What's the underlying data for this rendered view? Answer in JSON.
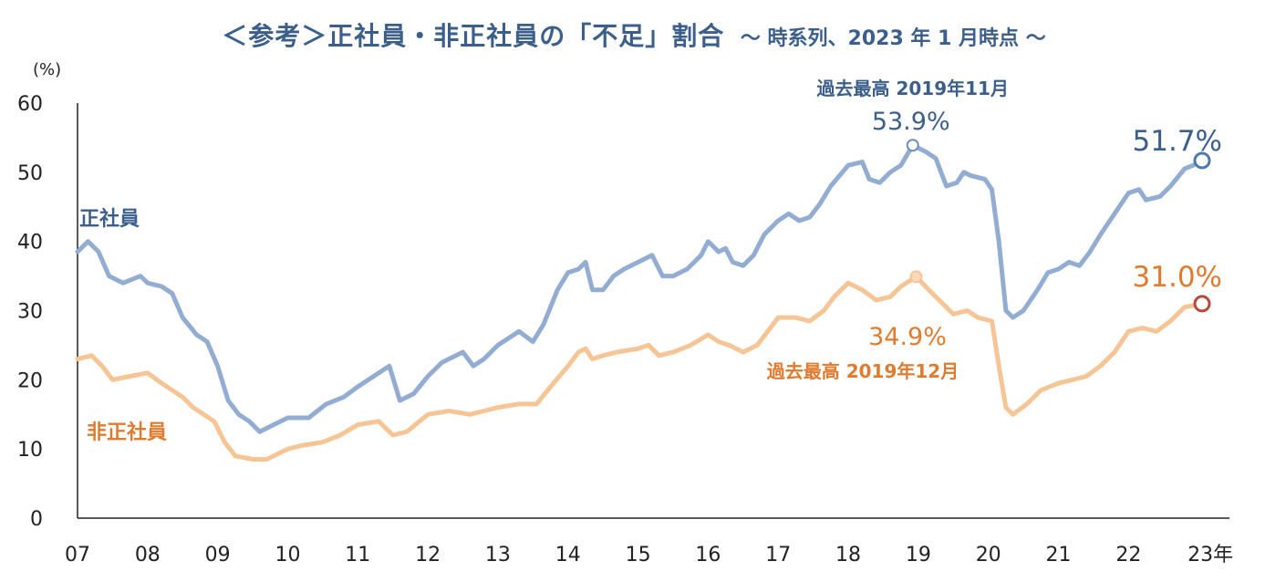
{
  "chart_data": {
    "type": "line",
    "title": "＜参考＞正社員・非正社員の「不足」割合",
    "subtitle": "～ 時系列、2023 年 1 月時点 ～",
    "ylabel": "(%)",
    "xlabel_suffix": "年",
    "ylim": [
      0,
      60
    ],
    "yticks": [
      0,
      10,
      20,
      30,
      40,
      50,
      60
    ],
    "xlim": [
      2007,
      2023.05
    ],
    "xticks": [
      "07",
      "08",
      "09",
      "10",
      "11",
      "12",
      "13",
      "14",
      "15",
      "16",
      "17",
      "18",
      "19",
      "20",
      "21",
      "22",
      "23年"
    ],
    "series": [
      {
        "name": "正社員",
        "color": "#93add2",
        "label_color": "#3b5f8a",
        "points": [
          [
            2007.0,
            38.5
          ],
          [
            2007.15,
            40
          ],
          [
            2007.3,
            38.5
          ],
          [
            2007.45,
            35
          ],
          [
            2007.65,
            34
          ],
          [
            2007.9,
            35
          ],
          [
            2008.0,
            34
          ],
          [
            2008.2,
            33.5
          ],
          [
            2008.35,
            32.5
          ],
          [
            2008.5,
            29
          ],
          [
            2008.7,
            26.5
          ],
          [
            2008.85,
            25.5
          ],
          [
            2009.0,
            22
          ],
          [
            2009.15,
            17
          ],
          [
            2009.3,
            15
          ],
          [
            2009.45,
            14
          ],
          [
            2009.6,
            12.5
          ],
          [
            2009.8,
            13.5
          ],
          [
            2010.0,
            14.5
          ],
          [
            2010.3,
            14.5
          ],
          [
            2010.55,
            16.5
          ],
          [
            2010.8,
            17.5
          ],
          [
            2011.0,
            19
          ],
          [
            2011.3,
            21
          ],
          [
            2011.45,
            22
          ],
          [
            2011.6,
            17
          ],
          [
            2011.8,
            18
          ],
          [
            2012.0,
            20.5
          ],
          [
            2012.2,
            22.5
          ],
          [
            2012.5,
            24
          ],
          [
            2012.65,
            22
          ],
          [
            2012.8,
            23
          ],
          [
            2013.0,
            25
          ],
          [
            2013.3,
            27
          ],
          [
            2013.5,
            25.5
          ],
          [
            2013.65,
            28
          ],
          [
            2013.85,
            33
          ],
          [
            2014.0,
            35.5
          ],
          [
            2014.15,
            36
          ],
          [
            2014.25,
            37
          ],
          [
            2014.35,
            33
          ],
          [
            2014.5,
            33
          ],
          [
            2014.65,
            35
          ],
          [
            2014.8,
            36
          ],
          [
            2015.0,
            37
          ],
          [
            2015.2,
            38
          ],
          [
            2015.35,
            35
          ],
          [
            2015.5,
            35
          ],
          [
            2015.7,
            36
          ],
          [
            2015.9,
            38
          ],
          [
            2016.0,
            40
          ],
          [
            2016.15,
            38.5
          ],
          [
            2016.25,
            39
          ],
          [
            2016.35,
            37
          ],
          [
            2016.5,
            36.5
          ],
          [
            2016.65,
            38
          ],
          [
            2016.8,
            41
          ],
          [
            2017.0,
            43
          ],
          [
            2017.15,
            44
          ],
          [
            2017.3,
            43
          ],
          [
            2017.45,
            43.5
          ],
          [
            2017.6,
            45.5
          ],
          [
            2017.75,
            48
          ],
          [
            2018.0,
            51
          ],
          [
            2018.2,
            51.5
          ],
          [
            2018.3,
            49
          ],
          [
            2018.45,
            48.5
          ],
          [
            2018.6,
            50
          ],
          [
            2018.75,
            51
          ],
          [
            2018.92,
            53.9
          ],
          [
            2019.1,
            53
          ],
          [
            2019.25,
            52
          ],
          [
            2019.4,
            48
          ],
          [
            2019.55,
            48.5
          ],
          [
            2019.65,
            50
          ],
          [
            2019.75,
            49.5
          ],
          [
            2019.95,
            49
          ],
          [
            2020.05,
            47.5
          ],
          [
            2020.15,
            40
          ],
          [
            2020.25,
            30
          ],
          [
            2020.35,
            29
          ],
          [
            2020.5,
            30
          ],
          [
            2020.7,
            33
          ],
          [
            2020.85,
            35.5
          ],
          [
            2021.0,
            36
          ],
          [
            2021.15,
            37
          ],
          [
            2021.3,
            36.5
          ],
          [
            2021.45,
            38.5
          ],
          [
            2021.6,
            41
          ],
          [
            2021.8,
            44
          ],
          [
            2022.0,
            47
          ],
          [
            2022.15,
            47.5
          ],
          [
            2022.25,
            46
          ],
          [
            2022.45,
            46.5
          ],
          [
            2022.6,
            48
          ],
          [
            2022.8,
            50.5
          ],
          [
            2022.92,
            51
          ],
          [
            2023.05,
            51.7
          ]
        ]
      },
      {
        "name": "非正社員",
        "color": "#f5c596",
        "label_color": "#df7a2e",
        "points": [
          [
            2007.0,
            23
          ],
          [
            2007.2,
            23.5
          ],
          [
            2007.35,
            22
          ],
          [
            2007.5,
            20
          ],
          [
            2007.75,
            20.5
          ],
          [
            2008.0,
            21
          ],
          [
            2008.2,
            19.5
          ],
          [
            2008.35,
            18.5
          ],
          [
            2008.5,
            17.5
          ],
          [
            2008.65,
            16
          ],
          [
            2008.8,
            15
          ],
          [
            2008.95,
            14
          ],
          [
            2009.1,
            11
          ],
          [
            2009.25,
            9
          ],
          [
            2009.5,
            8.5
          ],
          [
            2009.7,
            8.5
          ],
          [
            2010.0,
            10
          ],
          [
            2010.2,
            10.5
          ],
          [
            2010.5,
            11
          ],
          [
            2010.75,
            12
          ],
          [
            2011.0,
            13.5
          ],
          [
            2011.3,
            14
          ],
          [
            2011.5,
            12
          ],
          [
            2011.7,
            12.5
          ],
          [
            2012.0,
            15
          ],
          [
            2012.3,
            15.5
          ],
          [
            2012.6,
            15
          ],
          [
            2012.8,
            15.5
          ],
          [
            2013.0,
            16
          ],
          [
            2013.3,
            16.5
          ],
          [
            2013.55,
            16.5
          ],
          [
            2013.75,
            19
          ],
          [
            2014.0,
            22
          ],
          [
            2014.15,
            24
          ],
          [
            2014.25,
            24.5
          ],
          [
            2014.35,
            23
          ],
          [
            2014.5,
            23.5
          ],
          [
            2014.7,
            24
          ],
          [
            2015.0,
            24.5
          ],
          [
            2015.15,
            25
          ],
          [
            2015.3,
            23.5
          ],
          [
            2015.5,
            24
          ],
          [
            2015.75,
            25
          ],
          [
            2016.0,
            26.5
          ],
          [
            2016.15,
            25.5
          ],
          [
            2016.3,
            25
          ],
          [
            2016.5,
            24
          ],
          [
            2016.7,
            25
          ],
          [
            2016.85,
            27
          ],
          [
            2017.0,
            29
          ],
          [
            2017.25,
            29
          ],
          [
            2017.45,
            28.5
          ],
          [
            2017.65,
            30
          ],
          [
            2017.8,
            32
          ],
          [
            2018.0,
            34
          ],
          [
            2018.2,
            33
          ],
          [
            2018.4,
            31.5
          ],
          [
            2018.6,
            32
          ],
          [
            2018.75,
            33.5
          ],
          [
            2018.97,
            34.9
          ],
          [
            2019.15,
            33
          ],
          [
            2019.3,
            31.5
          ],
          [
            2019.5,
            29.5
          ],
          [
            2019.7,
            30
          ],
          [
            2019.85,
            29
          ],
          [
            2020.05,
            28.5
          ],
          [
            2020.15,
            22
          ],
          [
            2020.25,
            16
          ],
          [
            2020.35,
            15
          ],
          [
            2020.55,
            16.5
          ],
          [
            2020.75,
            18.5
          ],
          [
            2021.0,
            19.5
          ],
          [
            2021.2,
            20
          ],
          [
            2021.4,
            20.5
          ],
          [
            2021.6,
            22
          ],
          [
            2021.8,
            24
          ],
          [
            2022.0,
            27
          ],
          [
            2022.2,
            27.5
          ],
          [
            2022.4,
            27
          ],
          [
            2022.6,
            28.5
          ],
          [
            2022.8,
            30.5
          ],
          [
            2023.05,
            31.0
          ]
        ]
      }
    ],
    "annotations": [
      {
        "series": 0,
        "x": 2018.92,
        "y": 53.9,
        "value_text": "53.9%",
        "note": "過去最高 2019年11月"
      },
      {
        "series": 0,
        "x": 2023.05,
        "y": 51.7,
        "value_text": "51.7%"
      },
      {
        "series": 1,
        "x": 2018.97,
        "y": 34.9,
        "value_text": "34.9%",
        "note": "過去最高 2019年12月"
      },
      {
        "series": 1,
        "x": 2023.05,
        "y": 31.0,
        "value_text": "31.0%"
      }
    ],
    "series_labels": [
      "正社員",
      "非正社員"
    ]
  }
}
